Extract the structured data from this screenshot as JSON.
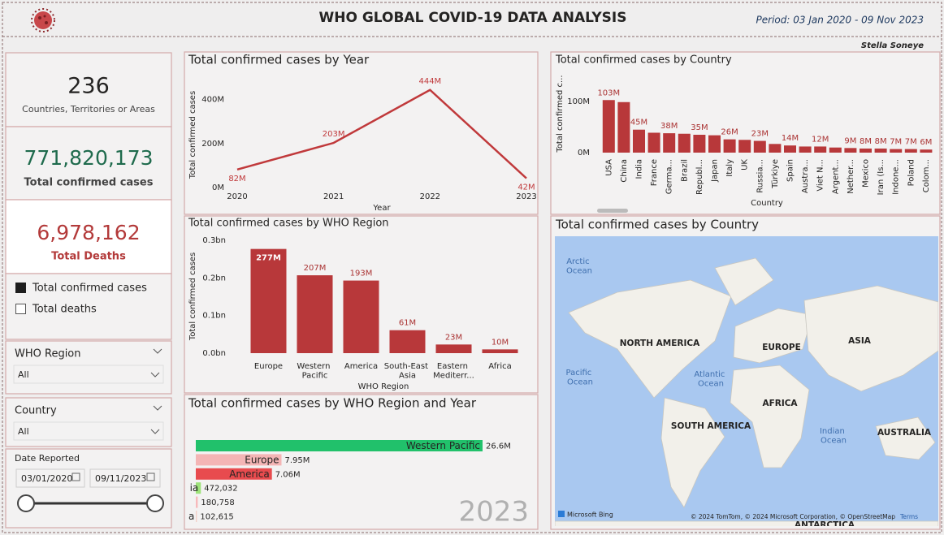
{
  "header": {
    "title": "WHO GLOBAL COVID-19 DATA ANALYSIS",
    "period": "Period: 03 Jan 2020 - 09 Nov 2023",
    "author": "Stella Soneye"
  },
  "kpis": [
    {
      "value": "236",
      "label": "Countries, Territories or Areas"
    },
    {
      "value": "771,820,173",
      "label": "Total confirmed cases"
    },
    {
      "value": "6,978,162",
      "label": "Total Deaths"
    }
  ],
  "measure_toggle": [
    "Total confirmed cases",
    "Total deaths"
  ],
  "filters": {
    "who_region": {
      "label": "WHO Region",
      "value": "All"
    },
    "country": {
      "label": "Country",
      "value": "All"
    },
    "date": {
      "label": "Date Reported",
      "start": "03/01/2020",
      "end": "09/11/2023"
    }
  },
  "chart_data": [
    {
      "type": "line",
      "title": "Total confirmed cases by Year",
      "x": [
        2020,
        2021,
        2022,
        2023
      ],
      "xlim": [
        2020,
        2023
      ],
      "xticks": [
        2020,
        2021,
        2022,
        2023
      ],
      "values": [
        82,
        203,
        444,
        42
      ],
      "value_labels": [
        "82M",
        "203M",
        "444M",
        "42M"
      ],
      "ylim": [
        0,
        480
      ],
      "yticks": [
        {
          "value": 0,
          "label": "0M"
        },
        {
          "value": 200,
          "label": "200M"
        },
        {
          "value": 400,
          "label": "400M"
        }
      ],
      "x_label": "Year",
      "y_label": "Total confirmed cases",
      "color": "#c0393b",
      "grid": false
    },
    {
      "type": "bar",
      "title": "Total confirmed cases by Country",
      "categories": [
        "USA",
        "China",
        "India",
        "France",
        "Germa...",
        "Brazil",
        "Republ...",
        "Japan",
        "Italy",
        "UK",
        "Russia...",
        "Türkiye",
        "Spain",
        "Austra...",
        "Viet N...",
        "Argent...",
        "Nether...",
        "Mexico",
        "Iran (Is...",
        "Indone...",
        "Poland",
        "Colom..."
      ],
      "values": [
        103,
        99,
        45,
        39,
        38,
        37,
        35,
        34,
        26,
        25,
        23,
        17,
        14,
        12,
        12,
        10,
        9,
        8,
        8,
        7,
        7,
        6
      ],
      "value_labels": [
        "103M",
        null,
        "45M",
        null,
        "38M",
        null,
        "35M",
        null,
        "26M",
        null,
        "23M",
        null,
        "14M",
        null,
        "12M",
        null,
        "9M",
        "8M",
        "8M",
        "7M",
        "7M",
        "6M"
      ],
      "ylim": [
        0,
        140
      ],
      "yticks": [
        {
          "value": 0,
          "label": "0M"
        },
        {
          "value": 100,
          "label": "100M"
        }
      ],
      "x_label": "Country",
      "y_label": "Total confirmed c...",
      "color": "#b8383a",
      "grid": false
    },
    {
      "type": "bar",
      "title": "Total confirmed cases by WHO Region",
      "categories": [
        "Europe",
        "Western Pacific",
        "America",
        "South-East Asia",
        "Eastern Mediterr...",
        "Africa"
      ],
      "values": [
        0.277,
        0.207,
        0.193,
        0.061,
        0.023,
        0.01
      ],
      "value_labels": [
        "277M",
        "207M",
        "193M",
        "61M",
        "23M",
        "10M"
      ],
      "ylim": [
        0,
        0.3
      ],
      "yticks": [
        {
          "value": 0,
          "label": "0.0bn"
        },
        {
          "value": 0.1,
          "label": "0.1bn"
        },
        {
          "value": 0.2,
          "label": "0.2bn"
        },
        {
          "value": 0.3,
          "label": "0.3bn"
        }
      ],
      "x_label": "WHO Region",
      "y_label": "Total confirmed cases",
      "color": "#b8383a",
      "grid": false
    },
    {
      "type": "hbar",
      "title": "Total confirmed cases by WHO Region and Year",
      "categories": [
        "Western Pacific",
        "Europe",
        "America",
        "ia",
        null,
        "a"
      ],
      "values": [
        26600000,
        7950000,
        7060000,
        472032,
        180758,
        102615
      ],
      "value_labels": [
        "26.6M",
        "7.95M",
        "7.06M",
        "472,032",
        "180,758",
        "102,615"
      ],
      "colors": [
        "#21c16b",
        "#f4b5b5",
        "#e84b4e",
        "#9ee37a",
        "#f7b9bb",
        "#f3d0c8"
      ],
      "xlim": [
        0,
        26600000
      ],
      "frame_label": "2023"
    },
    {
      "type": "map",
      "title": "Total confirmed cases by Country",
      "place_labels": [
        "Arctic Ocean",
        "NORTH AMERICA",
        "Pacific Ocean",
        "Atlantic Ocean",
        "EUROPE",
        "ASIA",
        "AFRICA",
        "SOUTH AMERICA",
        "Indian Ocean",
        "AUSTRALIA",
        "ANTARCTICA"
      ],
      "provider": "Microsoft Bing",
      "attribution": "© 2024 TomTom, © 2024 Microsoft Corporation, © OpenStreetMap",
      "terms": "Terms"
    }
  ]
}
